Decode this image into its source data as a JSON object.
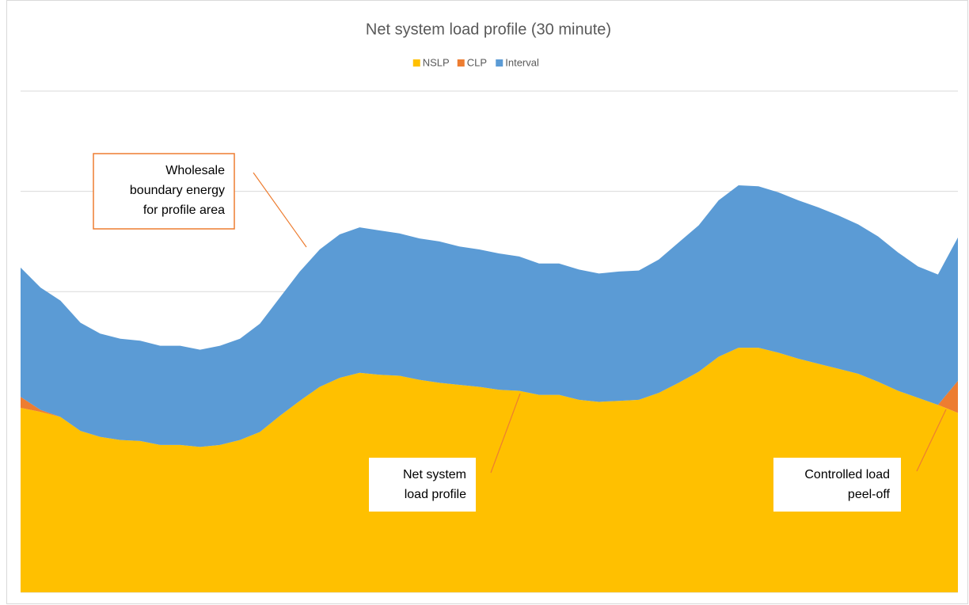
{
  "chart_data": {
    "type": "stacked_area",
    "title": "Net system load profile (30 minute)",
    "categories": [
      null,
      null,
      null,
      null,
      null,
      null,
      null,
      null,
      null,
      null,
      null,
      null,
      null,
      null,
      null,
      null,
      null,
      null,
      null,
      null,
      null,
      null,
      null,
      null,
      null,
      null,
      null,
      null,
      null,
      null,
      null,
      null,
      null,
      null,
      null,
      null,
      null,
      null,
      null,
      null,
      null,
      null,
      null,
      null,
      null,
      null,
      null,
      null
    ],
    "series": [
      {
        "name": "NSLP",
        "color": "#ffc000",
        "values": [
          1.84,
          1.8,
          1.75,
          1.61,
          1.55,
          1.52,
          1.51,
          1.47,
          1.47,
          1.45,
          1.47,
          1.52,
          1.6,
          1.76,
          1.91,
          2.05,
          2.14,
          2.19,
          2.17,
          2.16,
          2.12,
          2.09,
          2.07,
          2.05,
          2.02,
          2.01,
          1.97,
          1.97,
          1.92,
          1.9,
          1.91,
          1.92,
          1.99,
          2.09,
          2.2,
          2.35,
          2.44,
          2.44,
          2.39,
          2.33,
          2.28,
          2.23,
          2.18,
          2.1,
          2.01,
          1.94,
          1.87,
          1.79
        ]
      },
      {
        "name": "CLP",
        "color": "#ed7d31",
        "values": [
          0.11,
          0.02,
          0,
          0,
          0,
          0,
          0,
          0,
          0,
          0,
          0,
          0,
          0,
          0,
          0,
          0,
          0,
          0,
          0,
          0,
          0,
          0,
          0,
          0,
          0,
          0,
          0,
          0,
          0,
          0,
          0,
          0,
          0,
          0,
          0,
          0,
          0,
          0,
          0,
          0,
          0,
          0,
          0,
          0,
          0,
          0,
          0,
          0.32
        ]
      },
      {
        "name": "Interval",
        "color": "#5b9bd5",
        "values": [
          1.29,
          1.22,
          1.16,
          1.08,
          1.03,
          1.01,
          1.0,
          0.99,
          0.99,
          0.97,
          0.99,
          1.01,
          1.08,
          1.18,
          1.29,
          1.37,
          1.43,
          1.45,
          1.44,
          1.42,
          1.41,
          1.41,
          1.38,
          1.37,
          1.36,
          1.34,
          1.31,
          1.31,
          1.3,
          1.28,
          1.29,
          1.29,
          1.33,
          1.4,
          1.46,
          1.56,
          1.62,
          1.61,
          1.6,
          1.58,
          1.56,
          1.53,
          1.49,
          1.45,
          1.38,
          1.31,
          1.3,
          1.43
        ]
      }
    ],
    "ylim": [
      0,
      5
    ],
    "yticks": [
      0,
      1,
      2,
      3,
      4,
      5
    ],
    "grid": true,
    "legend": "top",
    "annotations": [
      {
        "lines": [
          "Wholesale",
          "boundary energy",
          "for profile area"
        ]
      },
      {
        "lines": [
          "Net system",
          "load profile"
        ]
      },
      {
        "lines": [
          "Controlled load",
          "peel-off"
        ]
      }
    ]
  }
}
